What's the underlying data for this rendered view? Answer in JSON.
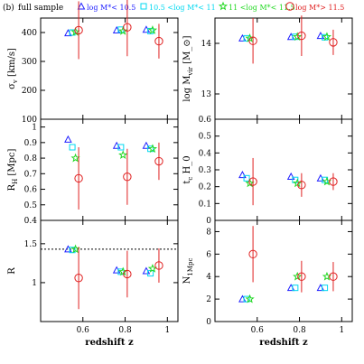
{
  "header": {
    "panel_label": "(b)",
    "sample_label": "full sample",
    "legend": [
      {
        "marker": "triangle",
        "color": "#2020ff",
        "label": "log M*< 10.5"
      },
      {
        "marker": "square",
        "color": "#00d8f0",
        "label": "10.5 <log M*< 11"
      },
      {
        "marker": "star",
        "color": "#22d822",
        "label": "11 <log M*< 11.5"
      },
      {
        "marker": "circle",
        "color": "#e02020",
        "label": "log M*> 11.5"
      }
    ]
  },
  "chart_data": [
    {
      "type": "scatter",
      "ylabel": "σ_v [km/s]",
      "xlim": [
        0.4,
        1.05
      ],
      "ylim": [
        100,
        450
      ],
      "yticks": [
        "100",
        "200",
        "300",
        "400"
      ],
      "xticks": [
        "0.6",
        "0.8",
        "1"
      ],
      "series": [
        {
          "name": "log M*< 10.5",
          "x": [
            0.53,
            0.76,
            0.9
          ],
          "y": [
            398,
            408,
            410
          ],
          "yerr": [
            0,
            0,
            0
          ]
        },
        {
          "name": "10.5 <log M*< 11",
          "x": [
            0.55,
            0.78,
            0.92
          ],
          "y": [
            400,
            410,
            405
          ],
          "yerr": [
            0,
            0,
            0
          ]
        },
        {
          "name": "11 <log M*< 11.5",
          "x": [
            0.565,
            0.79,
            0.93
          ],
          "y": [
            402,
            405,
            408
          ],
          "yerr": [
            0,
            0,
            0
          ]
        },
        {
          "name": "log M*> 11.5",
          "x": [
            0.58,
            0.81,
            0.96
          ],
          "y": [
            408,
            418,
            370
          ],
          "yerr": [
            100,
            100,
            60
          ]
        }
      ]
    },
    {
      "type": "scatter",
      "ylabel": "log M_vir [M_⊙]",
      "xlim": [
        0.4,
        1.05
      ],
      "ylim": [
        12.5,
        14.5
      ],
      "yticks": [
        "13",
        "14"
      ],
      "xticks": [
        "0.6",
        "0.8",
        "1"
      ],
      "series": [
        {
          "name": "log M*< 10.5",
          "x": [
            0.53,
            0.76,
            0.9
          ],
          "y": [
            14.1,
            14.13,
            14.15
          ],
          "yerr": [
            0,
            0,
            0
          ]
        },
        {
          "name": "10.5 <log M*< 11",
          "x": [
            0.55,
            0.78,
            0.92
          ],
          "y": [
            14.1,
            14.13,
            14.12
          ],
          "yerr": [
            0,
            0,
            0
          ]
        },
        {
          "name": "11 <log M*< 11.5",
          "x": [
            0.565,
            0.79,
            0.93
          ],
          "y": [
            14.1,
            14.13,
            14.13
          ],
          "yerr": [
            0,
            0,
            0
          ]
        },
        {
          "name": "log M*> 11.5",
          "x": [
            0.58,
            0.81,
            0.96
          ],
          "y": [
            14.05,
            14.15,
            14.02
          ],
          "yerr": [
            0.45,
            0.4,
            0.25
          ]
        }
      ]
    },
    {
      "type": "scatter",
      "ylabel": "R_H [Mpc]",
      "xlim": [
        0.4,
        1.05
      ],
      "ylim": [
        0.4,
        1.05
      ],
      "yticks": [
        "0.4",
        "0.5",
        "0.6",
        "0.7",
        "0.8",
        "0.9",
        "1"
      ],
      "xticks": [
        "0.6",
        "0.8",
        "1"
      ],
      "series": [
        {
          "name": "log M*< 10.5",
          "x": [
            0.53,
            0.76,
            0.9
          ],
          "y": [
            0.92,
            0.88,
            0.88
          ],
          "yerr": [
            0,
            0,
            0
          ]
        },
        {
          "name": "10.5 <log M*< 11",
          "x": [
            0.55,
            0.78,
            0.92
          ],
          "y": [
            0.87,
            0.87,
            0.86
          ],
          "yerr": [
            0,
            0,
            0
          ]
        },
        {
          "name": "11 <log M*< 11.5",
          "x": [
            0.565,
            0.79,
            0.93
          ],
          "y": [
            0.8,
            0.82,
            0.86
          ],
          "yerr": [
            0,
            0,
            0
          ]
        },
        {
          "name": "log M*> 11.5",
          "x": [
            0.58,
            0.81,
            0.96
          ],
          "y": [
            0.67,
            0.68,
            0.78
          ],
          "yerr": [
            0.2,
            0.18,
            0.12
          ]
        }
      ]
    },
    {
      "type": "scatter",
      "ylabel": "t_c H_0",
      "xlim": [
        0.4,
        1.05
      ],
      "ylim": [
        0,
        0.6
      ],
      "yticks": [
        "0",
        "0.1",
        "0.2",
        "0.3",
        "0.4",
        "0.5",
        "0.6"
      ],
      "xticks": [
        "0.6",
        "0.8",
        "1"
      ],
      "series": [
        {
          "name": "log M*< 10.5",
          "x": [
            0.53,
            0.76,
            0.9
          ],
          "y": [
            0.27,
            0.26,
            0.25
          ],
          "yerr": [
            0,
            0,
            0
          ]
        },
        {
          "name": "10.5 <log M*< 11",
          "x": [
            0.55,
            0.78,
            0.92
          ],
          "y": [
            0.25,
            0.24,
            0.24
          ],
          "yerr": [
            0,
            0,
            0
          ]
        },
        {
          "name": "11 <log M*< 11.5",
          "x": [
            0.565,
            0.79,
            0.93
          ],
          "y": [
            0.22,
            0.22,
            0.23
          ],
          "yerr": [
            0,
            0,
            0
          ]
        },
        {
          "name": "log M*> 11.5",
          "x": [
            0.58,
            0.81,
            0.96
          ],
          "y": [
            0.23,
            0.21,
            0.23
          ],
          "yerr": [
            0.14,
            0.07,
            0.05
          ]
        }
      ]
    },
    {
      "type": "scatter",
      "ylabel": "R",
      "xlabel": "redshift z",
      "xlim": [
        0.4,
        1.05
      ],
      "ylim": [
        0.5,
        1.8
      ],
      "yticks": [
        "1",
        "1.5"
      ],
      "xticks": [
        "0.6",
        "0.8",
        "1"
      ],
      "reference_line": 1.43,
      "series": [
        {
          "name": "log M*< 10.5",
          "x": [
            0.53,
            0.76,
            0.9
          ],
          "y": [
            1.43,
            1.16,
            1.15
          ],
          "yerr": [
            0,
            0,
            0
          ]
        },
        {
          "name": "10.5 <log M*< 11",
          "x": [
            0.55,
            0.78,
            0.92
          ],
          "y": [
            1.42,
            1.14,
            1.12
          ],
          "yerr": [
            0,
            0,
            0
          ]
        },
        {
          "name": "11 <log M*< 11.5",
          "x": [
            0.565,
            0.79,
            0.93
          ],
          "y": [
            1.43,
            1.14,
            1.18
          ],
          "yerr": [
            0,
            0,
            0
          ]
        },
        {
          "name": "log M*> 11.5",
          "x": [
            0.58,
            0.81,
            0.96
          ],
          "y": [
            1.06,
            1.11,
            1.22
          ],
          "yerr": [
            0.4,
            0.3,
            0.22
          ]
        }
      ]
    },
    {
      "type": "scatter",
      "ylabel": "N_1Mpc",
      "xlabel": "redshift z",
      "xlim": [
        0.4,
        1.05
      ],
      "ylim": [
        0,
        9
      ],
      "yticks": [
        "0",
        "2",
        "4",
        "6",
        "8"
      ],
      "xticks": [
        "0.6",
        "0.8",
        "1"
      ],
      "series": [
        {
          "name": "log M*< 10.5",
          "x": [
            0.53,
            0.76,
            0.9
          ],
          "y": [
            2.0,
            3.0,
            3.0
          ],
          "yerr": [
            0,
            0,
            0
          ]
        },
        {
          "name": "10.5 <log M*< 11",
          "x": [
            0.55,
            0.78,
            0.92
          ],
          "y": [
            2.0,
            3.0,
            3.0
          ],
          "yerr": [
            0,
            0,
            0
          ]
        },
        {
          "name": "11 <log M*< 11.5",
          "x": [
            0.565,
            0.79,
            0.93
          ],
          "y": [
            2.0,
            4.0,
            4.0
          ],
          "yerr": [
            0,
            0,
            0
          ]
        },
        {
          "name": "log M*> 11.5",
          "x": [
            0.58,
            0.81,
            0.96
          ],
          "y": [
            6.0,
            4.0,
            4.0
          ],
          "yerr": [
            2.5,
            1.4,
            1.3
          ]
        }
      ]
    }
  ]
}
